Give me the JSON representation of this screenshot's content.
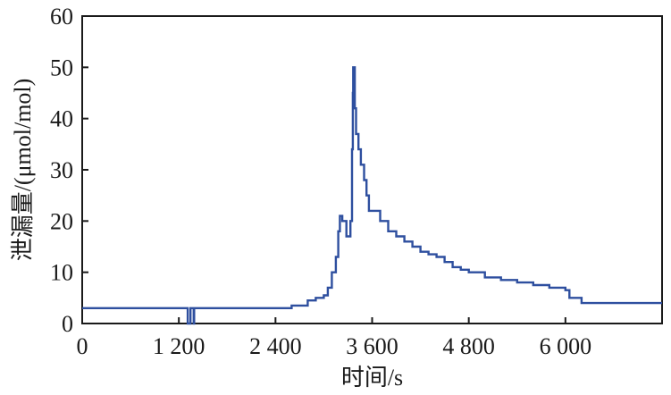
{
  "chart_data": {
    "type": "line",
    "xlabel": "时间/s",
    "ylabel": "泄漏量/(μmol/mol)",
    "xlim": [
      0,
      7200
    ],
    "ylim": [
      0,
      60
    ],
    "xticks": [
      0,
      1200,
      2400,
      3600,
      4800,
      6000
    ],
    "xtick_labels": [
      "0",
      "1 200",
      "2 400",
      "3 600",
      "4 800",
      "6 000"
    ],
    "yticks": [
      0,
      10,
      20,
      30,
      40,
      50,
      60
    ],
    "ytick_labels": [
      "0",
      "10",
      "20",
      "30",
      "40",
      "50",
      "60"
    ],
    "grid": false,
    "series": [
      {
        "color": "#2e4f9f",
        "x": [
          0,
          1300,
          1310,
          1340,
          1345,
          1380,
          1385,
          1390,
          2400,
          2600,
          2800,
          2900,
          3000,
          3050,
          3100,
          3150,
          3180,
          3200,
          3230,
          3280,
          3320,
          3330,
          3350,
          3360,
          3365,
          3370,
          3385,
          3400,
          3430,
          3460,
          3500,
          3530,
          3560,
          3600,
          3700,
          3800,
          3900,
          4000,
          4100,
          4200,
          4300,
          4400,
          4500,
          4600,
          4700,
          4800,
          5000,
          5200,
          5400,
          5600,
          5800,
          5950,
          6000,
          6050,
          6200,
          6500,
          7200
        ],
        "y": [
          3,
          3,
          0,
          0,
          3,
          3,
          0,
          3,
          3,
          3.5,
          4.5,
          5,
          5.5,
          7,
          10,
          13,
          18,
          21,
          20,
          17,
          17,
          20,
          34,
          45,
          50,
          50,
          42,
          37,
          34,
          31,
          28,
          25,
          22,
          22,
          20,
          18,
          17,
          16,
          15,
          14,
          13.5,
          13,
          12,
          11,
          10.5,
          10,
          9,
          8.5,
          8,
          7.5,
          7,
          7,
          6.5,
          5,
          4,
          4,
          4
        ]
      }
    ]
  }
}
